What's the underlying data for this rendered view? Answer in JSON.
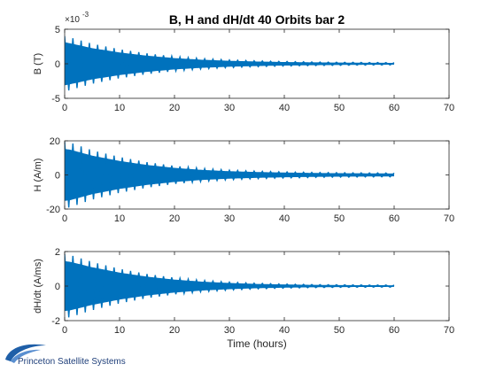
{
  "figure": {
    "title": "B, H and dH/dt 40 Orbits bar 2",
    "logo_text": "Princeton Satellite Systems"
  },
  "colors": {
    "background": "#ffffff",
    "series": "#0072bd",
    "axes": "#262626",
    "grid": "#e0e0e0",
    "logo_blue": "#1f5fa8"
  },
  "chart_data": [
    {
      "type": "line",
      "title": "B, H and dH/dt 40 Orbits bar 2",
      "xlabel": "",
      "ylabel": "B (T)",
      "y_exponent_label": "×10",
      "y_exponent": "-3",
      "xlim": [
        0,
        70
      ],
      "ylim": [
        -5,
        5
      ],
      "xticks": [
        "0",
        "10",
        "20",
        "30",
        "40",
        "50",
        "60",
        "70"
      ],
      "yticks": [
        "-5",
        "0",
        "5"
      ],
      "grid": false,
      "series": [
        {
          "style": "damped oscillation",
          "envelope_t": [
            0,
            1,
            5,
            10,
            15,
            20,
            25,
            30,
            35,
            40,
            45,
            50,
            55,
            60
          ],
          "envelope_amp": [
            4.0,
            3.8,
            2.9,
            2.1,
            1.5,
            1.05,
            0.75,
            0.55,
            0.42,
            0.33,
            0.27,
            0.22,
            0.19,
            0.17
          ],
          "x_end": 60,
          "oscillation_period_hours": 1.5
        }
      ]
    },
    {
      "type": "line",
      "xlabel": "",
      "ylabel": "H (A/m)",
      "xlim": [
        0,
        70
      ],
      "ylim": [
        -20,
        20
      ],
      "xticks": [
        "0",
        "10",
        "20",
        "30",
        "40",
        "50",
        "60",
        "70"
      ],
      "yticks": [
        "-20",
        "0",
        "20"
      ],
      "grid": false,
      "series": [
        {
          "style": "damped oscillation",
          "envelope_t": [
            0,
            1,
            5,
            10,
            15,
            20,
            25,
            30,
            35,
            40,
            45,
            50,
            55,
            60
          ],
          "envelope_amp": [
            19.5,
            19,
            14.5,
            10.5,
            7.5,
            5.3,
            3.8,
            2.8,
            2.2,
            1.8,
            1.5,
            1.3,
            1.2,
            1.1
          ],
          "x_end": 60,
          "oscillation_period_hours": 1.5
        }
      ]
    },
    {
      "type": "line",
      "xlabel": "Time (hours)",
      "ylabel": "dH/dt (A/ms)",
      "xlim": [
        0,
        70
      ],
      "ylim": [
        -2,
        2
      ],
      "xticks": [
        "0",
        "10",
        "20",
        "30",
        "40",
        "50",
        "60",
        "70"
      ],
      "yticks": [
        "-2",
        "0",
        "2"
      ],
      "grid": false,
      "series": [
        {
          "style": "damped oscillation",
          "envelope_t": [
            0,
            1,
            5,
            10,
            15,
            20,
            25,
            30,
            35,
            40,
            45,
            50,
            55,
            60
          ],
          "envelope_amp": [
            1.85,
            1.8,
            1.4,
            1.0,
            0.7,
            0.48,
            0.33,
            0.23,
            0.16,
            0.12,
            0.09,
            0.075,
            0.065,
            0.06
          ],
          "x_end": 60,
          "oscillation_period_hours": 1.5
        }
      ]
    }
  ]
}
